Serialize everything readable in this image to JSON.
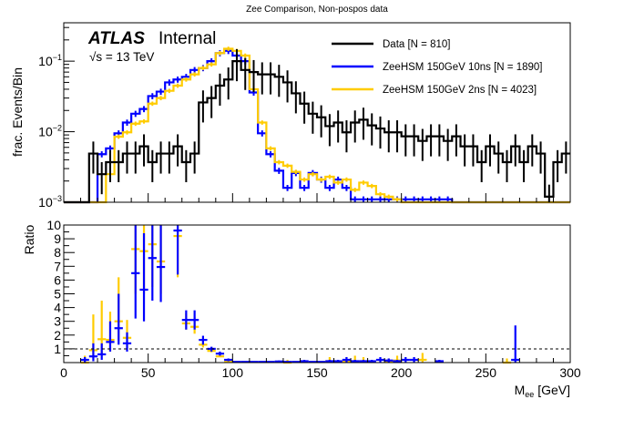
{
  "chart_data": [
    {
      "type": "line",
      "subtype": "step-histogram",
      "title": "Zee Comparison, Non-pospos data",
      "xlabel": "",
      "ylabel": "frac. Events/Bin",
      "yscale": "log",
      "xlim": [
        0,
        300
      ],
      "ylim": [
        0.001,
        0.35
      ],
      "y_tick_labels": [
        "10^{-3}",
        "10^{-2}",
        "10^{-1}"
      ],
      "y_ticks": [
        0.001,
        0.01,
        0.1
      ],
      "bin_width": 5,
      "label_atlas": "ATLAS",
      "label_internal": "Internal",
      "label_energy": "√s = 13 TeV",
      "legend_position": "top-right",
      "legend": [
        {
          "label": "Data [N = 810]",
          "color": "#000000"
        },
        {
          "label": "ZeeHSM 150GeV 10ns [N = 1890]",
          "color": "#0000ff"
        },
        {
          "label": "ZeeHSM 150GeV 2ns [N = 4023]",
          "color": "#ffcc00"
        }
      ],
      "series": [
        {
          "name": "Data [N = 810]",
          "color": "#000000",
          "values": [
            0,
            0,
            0,
            0.0049,
            0.0025,
            0.0037,
            0.0037,
            0.0049,
            0.0049,
            0.0062,
            0.0037,
            0.0049,
            0.0049,
            0.0062,
            0.0037,
            0.0049,
            0.026,
            0.03,
            0.045,
            0.055,
            0.1,
            0.075,
            0.07,
            0.065,
            0.065,
            0.06,
            0.05,
            0.035,
            0.025,
            0.018,
            0.016,
            0.012,
            0.0135,
            0.0098,
            0.0135,
            0.0148,
            0.0123,
            0.0111,
            0.0098,
            0.0098,
            0.0086,
            0.0086,
            0.0074,
            0.0086,
            0.0086,
            0.0074,
            0.0086,
            0.0062,
            0.0062,
            0.0037,
            0.0062,
            0.0049,
            0.0037,
            0.0062,
            0.0037,
            0.0062,
            0.0049,
            0.0012,
            0.0037,
            0.0049
          ],
          "errors_rel": 0.3
        },
        {
          "name": "ZeeHSM 150GeV 10ns [N = 1890]",
          "color": "#0000ff",
          "values": [
            0,
            0,
            0,
            0,
            0.0048,
            0.0058,
            0.0095,
            0.0135,
            0.018,
            0.021,
            0.032,
            0.037,
            0.05,
            0.055,
            0.06,
            0.075,
            0.08,
            0.1,
            0.13,
            0.14,
            0.12,
            0.1,
            0.036,
            0.0095,
            0.0048,
            0.0028,
            0.0016,
            0.0026,
            0.0016,
            0.0026,
            0.0021,
            0.0016,
            0.0021,
            0.0016,
            0.0011,
            0.0011,
            0.0011,
            0.0011,
            0.0011,
            0.0011,
            0.0011,
            0.0011,
            0.0011,
            0.0011,
            0.0011,
            0.0011,
            0.001,
            0.001,
            0.001,
            0.001,
            0.001,
            0.001,
            0.001,
            0.001,
            0.001,
            0.001,
            0.001,
            0.001,
            0.001,
            0.001
          ],
          "errors_rel": 0.1
        },
        {
          "name": "ZeeHSM 150GeV 2ns [N = 4023]",
          "color": "#ffcc00",
          "values": [
            0,
            0,
            0,
            0,
            0,
            0.0025,
            0.0085,
            0.0098,
            0.013,
            0.014,
            0.025,
            0.03,
            0.038,
            0.045,
            0.055,
            0.065,
            0.08,
            0.09,
            0.13,
            0.15,
            0.14,
            0.12,
            0.04,
            0.0135,
            0.0058,
            0.0037,
            0.0033,
            0.0027,
            0.0021,
            0.0025,
            0.0021,
            0.0023,
            0.0019,
            0.0021,
            0.0015,
            0.0019,
            0.0017,
            0.0013,
            0.0012,
            0.0011,
            0.001,
            0.001,
            0.001,
            0.001,
            0.001,
            0.001,
            0.001,
            0.001,
            0.001,
            0.001,
            0.001,
            0.001,
            0.001,
            0.001,
            0.001,
            0.001,
            0.001,
            0.001,
            0.001,
            0.001
          ],
          "errors_rel": 0.07
        }
      ]
    },
    {
      "type": "scatter",
      "subtype": "ratio-with-errors",
      "title": "",
      "xlabel": "M_ee [GeV]",
      "xlabel_main": "M",
      "xlabel_sub": "ee",
      "xlabel_unit": " [GeV]",
      "ylabel": "Ratio",
      "xlim": [
        0,
        300
      ],
      "ylim": [
        0,
        10
      ],
      "x_ticks": [
        0,
        50,
        100,
        150,
        200,
        250,
        300
      ],
      "x_tick_labels": [
        "0",
        "50",
        "100",
        "150",
        "200",
        "250",
        "300"
      ],
      "y_ticks": [
        1,
        2,
        3,
        4,
        5,
        6,
        7,
        8,
        9,
        10
      ],
      "y_tick_labels": [
        "1",
        "2",
        "3",
        "4",
        "5",
        "6",
        "7",
        "8",
        "9",
        "10"
      ],
      "reference_line": 1,
      "series": [
        {
          "name": "ZeeHSM 150GeV 10ns / Data",
          "color": "#0000ff",
          "points": [
            {
              "x": 12.5,
              "y": 0.2,
              "lo": 0.0,
              "hi": 0.4
            },
            {
              "x": 17.5,
              "y": 0.45,
              "lo": 0.1,
              "hi": 1.4
            },
            {
              "x": 22.5,
              "y": 0.6,
              "lo": 0.2,
              "hi": 1.4
            },
            {
              "x": 27.5,
              "y": 1.5,
              "lo": 0.8,
              "hi": 3.0
            },
            {
              "x": 32.5,
              "y": 2.5,
              "lo": 1.3,
              "hi": 5.0
            },
            {
              "x": 37.5,
              "y": 1.4,
              "lo": 0.8,
              "hi": 2.2
            },
            {
              "x": 42.5,
              "y": 6.5,
              "lo": 3.2,
              "hi": 10
            },
            {
              "x": 47.5,
              "y": 5.3,
              "lo": 3.0,
              "hi": 9.4
            },
            {
              "x": 52.5,
              "y": 7.6,
              "lo": 4.5,
              "hi": 10
            },
            {
              "x": 57.5,
              "y": 6.95,
              "lo": 4.4,
              "hi": 10
            },
            {
              "x": 67.5,
              "y": 9.6,
              "lo": 6.4,
              "hi": 10
            },
            {
              "x": 72.5,
              "y": 3.1,
              "lo": 2.4,
              "hi": 3.8
            },
            {
              "x": 77.5,
              "y": 3.1,
              "lo": 2.4,
              "hi": 3.8
            },
            {
              "x": 82.5,
              "y": 1.65,
              "lo": 1.3,
              "hi": 1.95
            },
            {
              "x": 87.5,
              "y": 1.0,
              "lo": 0.8,
              "hi": 1.15
            },
            {
              "x": 92.5,
              "y": 0.65,
              "lo": 0.5,
              "hi": 0.8
            },
            {
              "x": 97.5,
              "y": 0.2,
              "lo": 0.1,
              "hi": 0.3
            },
            {
              "x": 102.5,
              "y": 0.05,
              "lo": 0.0,
              "hi": 0.1
            },
            {
              "x": 107.5,
              "y": 0.05,
              "lo": 0.0,
              "hi": 0.1
            },
            {
              "x": 112.5,
              "y": 0.05,
              "lo": 0.0,
              "hi": 0.1
            },
            {
              "x": 117.5,
              "y": 0.05,
              "lo": 0.0,
              "hi": 0.1
            },
            {
              "x": 122.5,
              "y": 0.05,
              "lo": 0.0,
              "hi": 0.1
            },
            {
              "x": 127.5,
              "y": 0.08,
              "lo": 0.0,
              "hi": 0.15
            },
            {
              "x": 132.5,
              "y": 0.05,
              "lo": 0.0,
              "hi": 0.1
            },
            {
              "x": 137.5,
              "y": 0.05,
              "lo": 0.0,
              "hi": 0.1
            },
            {
              "x": 142.5,
              "y": 0.1,
              "lo": 0.0,
              "hi": 0.2
            },
            {
              "x": 147.5,
              "y": 0.05,
              "lo": 0.0,
              "hi": 0.1
            },
            {
              "x": 152.5,
              "y": 0.05,
              "lo": 0.0,
              "hi": 0.1
            },
            {
              "x": 157.5,
              "y": 0.1,
              "lo": 0.0,
              "hi": 0.2
            },
            {
              "x": 162.5,
              "y": 0.1,
              "lo": 0.0,
              "hi": 0.2
            },
            {
              "x": 167.5,
              "y": 0.2,
              "lo": 0.0,
              "hi": 0.4
            },
            {
              "x": 172.5,
              "y": 0.1,
              "lo": 0.0,
              "hi": 0.2
            },
            {
              "x": 177.5,
              "y": 0.1,
              "lo": 0.0,
              "hi": 0.2
            },
            {
              "x": 182.5,
              "y": 0.1,
              "lo": 0.0,
              "hi": 0.2
            },
            {
              "x": 187.5,
              "y": 0.2,
              "lo": 0.0,
              "hi": 0.4
            },
            {
              "x": 192.5,
              "y": 0.15,
              "lo": 0.0,
              "hi": 0.3
            },
            {
              "x": 197.5,
              "y": 0.1,
              "lo": 0.0,
              "hi": 0.2
            },
            {
              "x": 202.5,
              "y": 0.2,
              "lo": 0.0,
              "hi": 0.4
            },
            {
              "x": 207.5,
              "y": 0.2,
              "lo": 0.0,
              "hi": 0.4
            },
            {
              "x": 222.5,
              "y": 0.1,
              "lo": 0.0,
              "hi": 0.2
            },
            {
              "x": 267.5,
              "y": 0.2,
              "lo": 0.0,
              "hi": 2.7
            }
          ]
        },
        {
          "name": "ZeeHSM 150GeV 2ns / Data",
          "color": "#ffcc00",
          "points": [
            {
              "x": 12.5,
              "y": 0.1,
              "lo": 0.0,
              "hi": 0.5
            },
            {
              "x": 17.5,
              "y": 1.0,
              "lo": 0.3,
              "hi": 3.5
            },
            {
              "x": 22.5,
              "y": 1.8,
              "lo": 0.5,
              "hi": 4.5
            },
            {
              "x": 27.5,
              "y": 1.75,
              "lo": 0.8,
              "hi": 3.7
            },
            {
              "x": 32.5,
              "y": 3.1,
              "lo": 1.6,
              "hi": 6.2
            },
            {
              "x": 37.5,
              "y": 1.9,
              "lo": 1.0,
              "hi": 3.1
            },
            {
              "x": 42.5,
              "y": 8.35,
              "lo": 5.0,
              "hi": 10
            },
            {
              "x": 47.5,
              "y": 8.2,
              "lo": 5.0,
              "hi": 10
            },
            {
              "x": 52.5,
              "y": 8.7,
              "lo": 5.5,
              "hi": 10
            },
            {
              "x": 57.5,
              "y": 7.45,
              "lo": 5.0,
              "hi": 10
            },
            {
              "x": 67.5,
              "y": 9.3,
              "lo": 6.2,
              "hi": 10
            },
            {
              "x": 72.5,
              "y": 2.95,
              "lo": 2.4,
              "hi": 3.6
            },
            {
              "x": 77.5,
              "y": 2.7,
              "lo": 2.1,
              "hi": 3.3
            },
            {
              "x": 82.5,
              "y": 1.4,
              "lo": 1.1,
              "hi": 1.7
            },
            {
              "x": 87.5,
              "y": 0.95,
              "lo": 0.75,
              "hi": 1.1
            },
            {
              "x": 92.5,
              "y": 0.55,
              "lo": 0.45,
              "hi": 0.7
            },
            {
              "x": 97.5,
              "y": 0.15,
              "lo": 0.1,
              "hi": 0.25
            },
            {
              "x": 132.5,
              "y": 0.1,
              "lo": 0.0,
              "hi": 0.2
            },
            {
              "x": 157.5,
              "y": 0.2,
              "lo": 0.0,
              "hi": 0.4
            },
            {
              "x": 167.5,
              "y": 0.2,
              "lo": 0.0,
              "hi": 0.4
            },
            {
              "x": 172.5,
              "y": 0.2,
              "lo": 0.0,
              "hi": 0.5
            },
            {
              "x": 177.5,
              "y": 0.2,
              "lo": 0.0,
              "hi": 0.4
            },
            {
              "x": 192.5,
              "y": 0.15,
              "lo": 0.0,
              "hi": 0.3
            },
            {
              "x": 197.5,
              "y": 0.25,
              "lo": 0.0,
              "hi": 0.5
            },
            {
              "x": 212.5,
              "y": 0.3,
              "lo": 0.0,
              "hi": 0.7
            },
            {
              "x": 262.5,
              "y": 0.1,
              "lo": 0.0,
              "hi": 0.3
            }
          ]
        }
      ]
    }
  ]
}
